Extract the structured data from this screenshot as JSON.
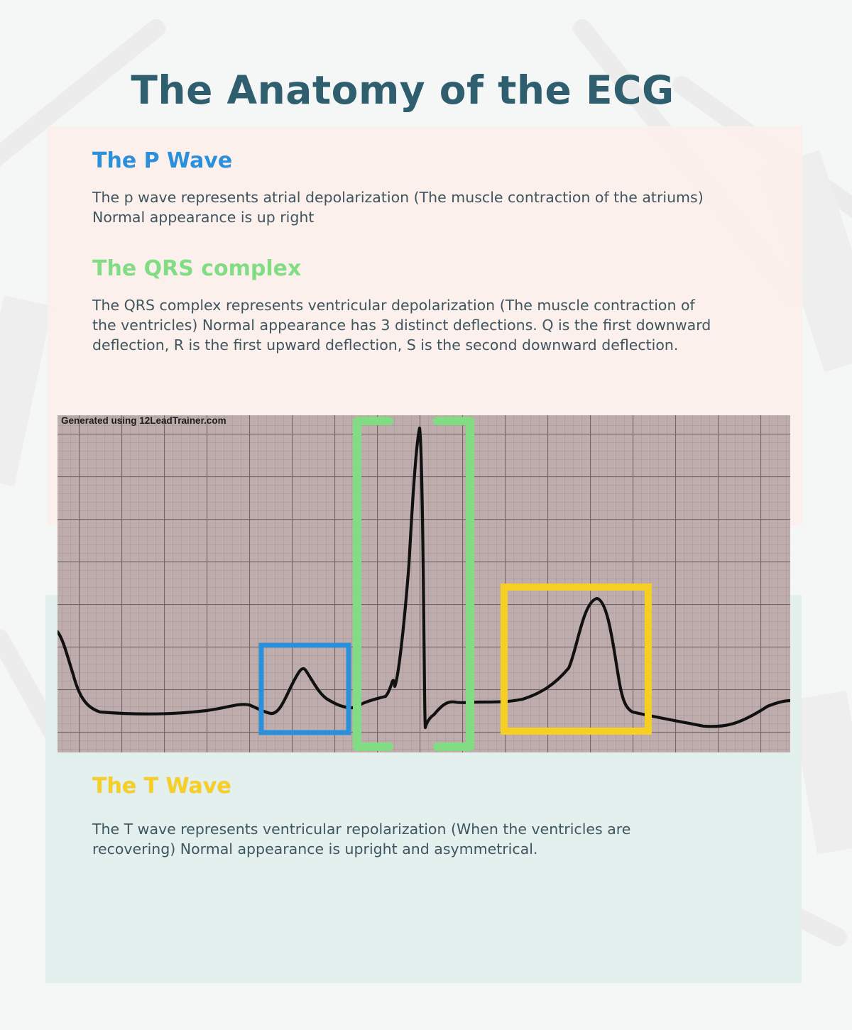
{
  "title": "The Anatomy of the ECG",
  "sections": {
    "p_wave": {
      "heading": "The P Wave",
      "text": "The p wave represents atrial depolarization (The muscle contraction of the atriums) Normal appearance is up right",
      "color": "#2b90dc"
    },
    "qrs": {
      "heading": "The QRS complex",
      "text": "The QRS complex represents ventricular depolarization (The muscle contraction of the ventricles) Normal appearance has 3 distinct deflections. Q is the first downward deflection, R is the first upward deflection, S is the second downward deflection.",
      "color": "#82dc84"
    },
    "t_wave": {
      "heading": "The T Wave",
      "text": "The T wave represents ventricular repolarization (When the ventricles are recovering) Normal appearance is upright and asymmetrical.",
      "color": "#f6cf22"
    }
  },
  "figure": {
    "credit": "Generated using 12LeadTrainer.com",
    "box_colors": {
      "p": "#2b90dc",
      "qrs": "#82dc84",
      "t": "#f6cf22"
    }
  }
}
